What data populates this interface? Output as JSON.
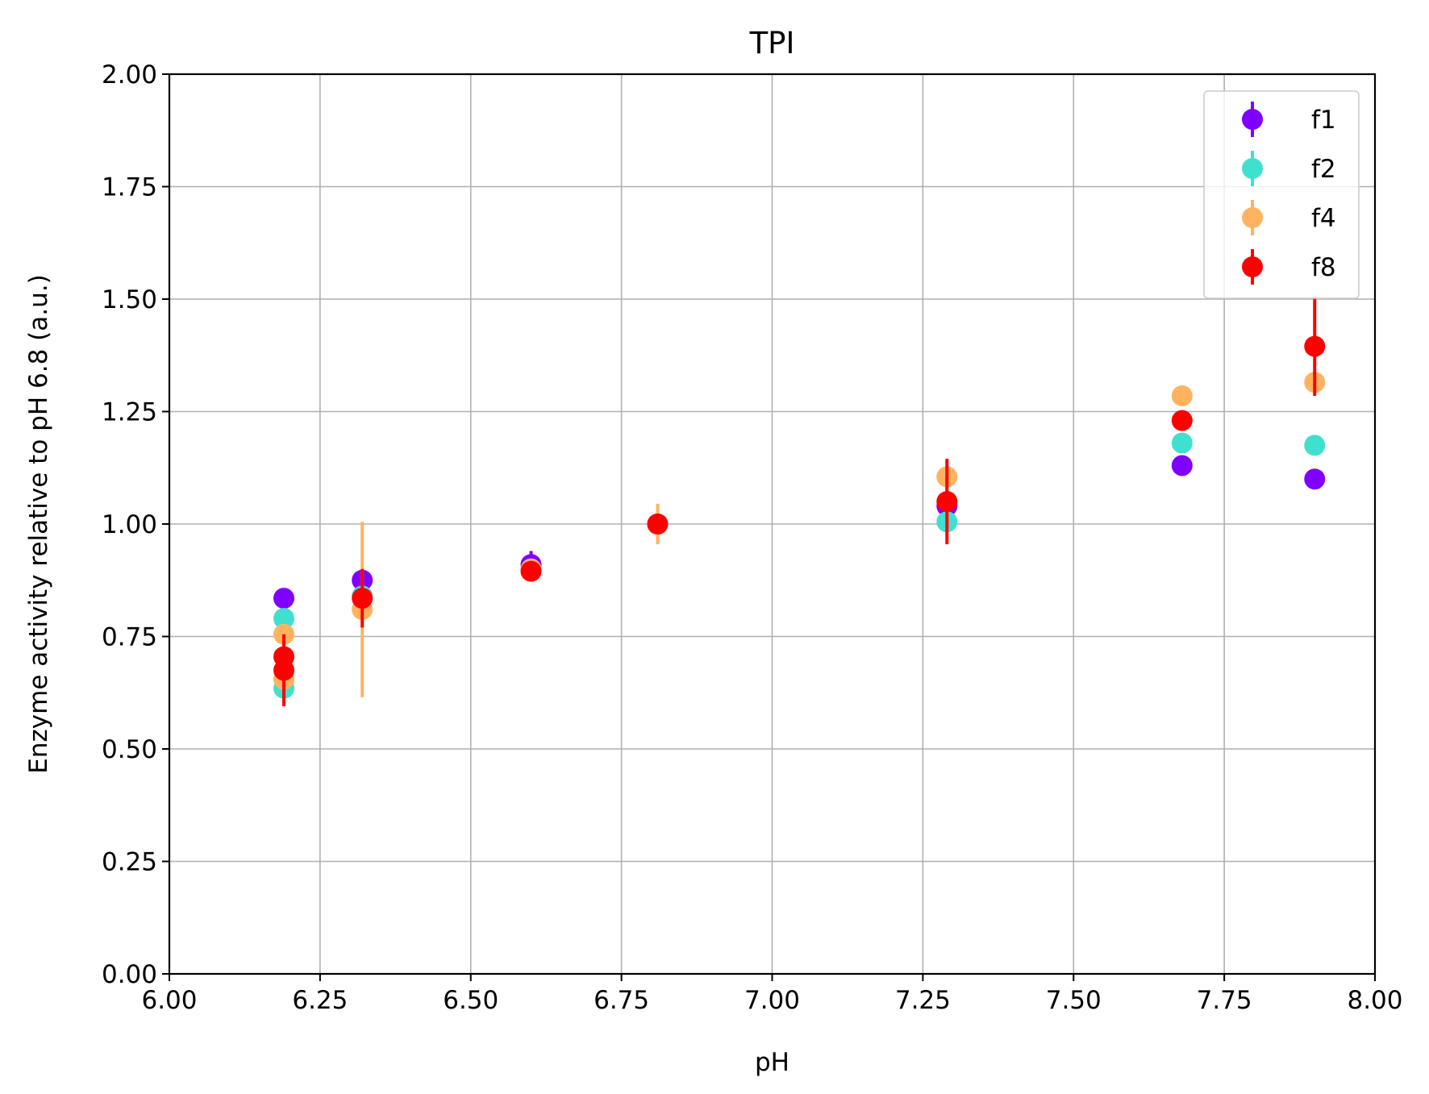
{
  "chart_data": {
    "type": "scatter",
    "title": "TPI",
    "xlabel": "pH",
    "ylabel": "Enzyme activity relative to pH 6.8 (a.u.)",
    "xlim": [
      6.0,
      8.0
    ],
    "ylim": [
      0.0,
      2.0
    ],
    "xticks": [
      "6.00",
      "6.25",
      "6.50",
      "6.75",
      "7.00",
      "7.25",
      "7.50",
      "7.75",
      "8.00"
    ],
    "yticks": [
      "0.00",
      "0.25",
      "0.50",
      "0.75",
      "1.00",
      "1.25",
      "1.50",
      "1.75",
      "2.00"
    ],
    "grid": true,
    "legend_position": "top-right",
    "series": [
      {
        "name": "f1",
        "color": "#8000ff",
        "points": [
          {
            "x": 6.19,
            "y": 0.835,
            "err": 0.02
          },
          {
            "x": 6.32,
            "y": 0.875,
            "err": 0.02
          },
          {
            "x": 6.6,
            "y": 0.91,
            "err": 0.03
          },
          {
            "x": 6.81,
            "y": 1.0,
            "err": 0.01
          },
          {
            "x": 7.29,
            "y": 1.04,
            "err": 0.02
          },
          {
            "x": 7.68,
            "y": 1.13,
            "err": 0.01
          },
          {
            "x": 7.9,
            "y": 1.1,
            "err": 0.01
          }
        ]
      },
      {
        "name": "f2",
        "color": "#40e0d0",
        "points": [
          {
            "x": 6.19,
            "y": 0.79,
            "err": 0.02
          },
          {
            "x": 6.19,
            "y": 0.635,
            "err": 0.02
          },
          {
            "x": 6.32,
            "y": 0.84,
            "err": 0.02
          },
          {
            "x": 6.6,
            "y": 0.9,
            "err": 0.01
          },
          {
            "x": 6.81,
            "y": 1.0,
            "err": 0.01
          },
          {
            "x": 7.29,
            "y": 1.005,
            "err": 0.02
          },
          {
            "x": 7.68,
            "y": 1.18,
            "err": 0.01
          },
          {
            "x": 7.9,
            "y": 1.175,
            "err": 0.01
          }
        ]
      },
      {
        "name": "f4",
        "color": "#ffb360",
        "points": [
          {
            "x": 6.19,
            "y": 0.755,
            "err": 0.02
          },
          {
            "x": 6.19,
            "y": 0.655,
            "err": 0.02
          },
          {
            "x": 6.32,
            "y": 0.81,
            "err": 0.195
          },
          {
            "x": 6.6,
            "y": 0.9,
            "err": 0.01
          },
          {
            "x": 6.81,
            "y": 1.0,
            "err": 0.045
          },
          {
            "x": 7.29,
            "y": 1.105,
            "err": 0.03
          },
          {
            "x": 7.68,
            "y": 1.285,
            "err": 0.01
          },
          {
            "x": 7.9,
            "y": 1.315,
            "err": 0.02
          }
        ]
      },
      {
        "name": "f8",
        "color": "#ff0000",
        "points": [
          {
            "x": 6.19,
            "y": 0.705,
            "err": 0.02
          },
          {
            "x": 6.19,
            "y": 0.675,
            "err": 0.08
          },
          {
            "x": 6.32,
            "y": 0.835,
            "err": 0.065
          },
          {
            "x": 6.6,
            "y": 0.895,
            "err": 0.01
          },
          {
            "x": 6.81,
            "y": 1.0,
            "err": 0.01
          },
          {
            "x": 7.29,
            "y": 1.05,
            "err": 0.095
          },
          {
            "x": 7.68,
            "y": 1.23,
            "err": 0.01
          },
          {
            "x": 7.9,
            "y": 1.395,
            "err": 0.11
          }
        ]
      }
    ]
  }
}
